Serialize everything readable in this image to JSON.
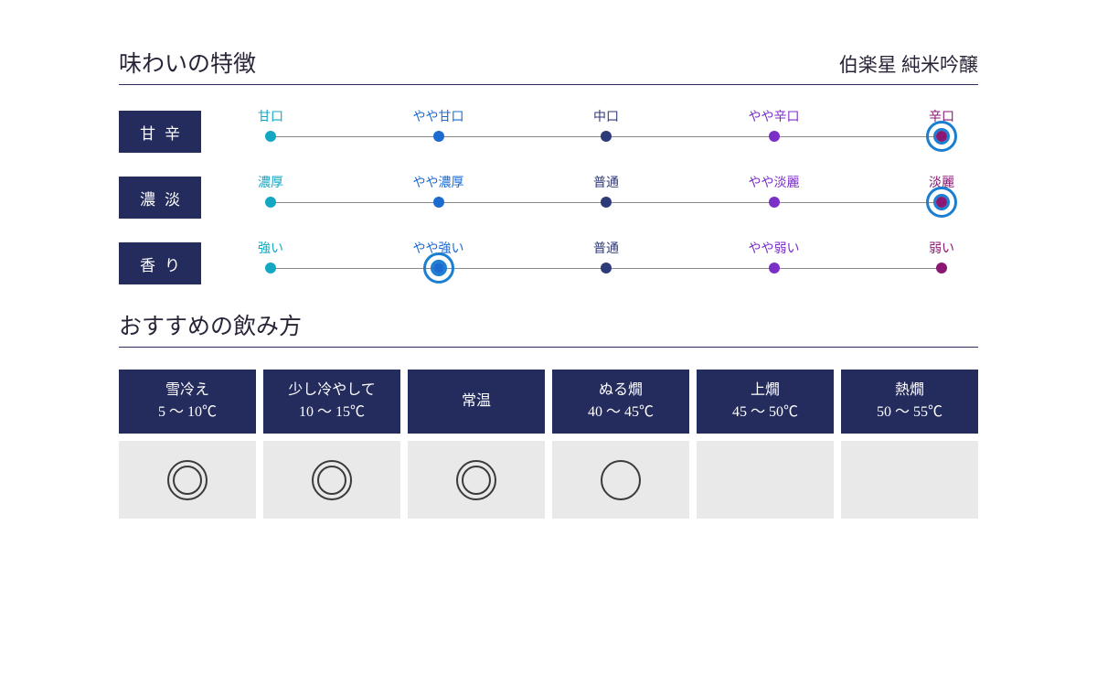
{
  "colors": {
    "darkNavy": "#242b5d",
    "titleText": "#2b2438",
    "divider": "#2b2a5a",
    "cellBg": "#e9e9e9",
    "symbol": "#3a3a3a"
  },
  "header": {
    "sectionTitle": "味わいの特徴",
    "productName": "伯楽星 純米吟醸"
  },
  "scaleColors": [
    "#14a7c1",
    "#1c6bd0",
    "#2f3a78",
    "#7b2fc7",
    "#8a1772"
  ],
  "markerColor": "#1b7fd1",
  "tasteRows": [
    {
      "label": "甘辛",
      "scale": [
        "甘口",
        "やや甘口",
        "中口",
        "やや辛口",
        "辛口"
      ],
      "selectedIndex": 4
    },
    {
      "label": "濃淡",
      "scale": [
        "濃厚",
        "やや濃厚",
        "普通",
        "やや淡麗",
        "淡麗"
      ],
      "selectedIndex": 4
    },
    {
      "label": "香り",
      "scale": [
        "強い",
        "やや強い",
        "普通",
        "やや弱い",
        "弱い"
      ],
      "selectedIndex": 1
    }
  ],
  "drinkSection": {
    "title": "おすすめの飲み方",
    "columns": [
      {
        "name": "雪冷え",
        "temp": "5 〜 10℃",
        "rating": "double"
      },
      {
        "name": "少し冷やして",
        "temp": "10 〜 15℃",
        "rating": "double"
      },
      {
        "name": "常温",
        "temp": "",
        "rating": "double"
      },
      {
        "name": "ぬる燗",
        "temp": "40 〜 45℃",
        "rating": "single"
      },
      {
        "name": "上燗",
        "temp": "45 〜 50℃",
        "rating": ""
      },
      {
        "name": "熱燗",
        "temp": "50 〜 55℃",
        "rating": ""
      }
    ]
  }
}
